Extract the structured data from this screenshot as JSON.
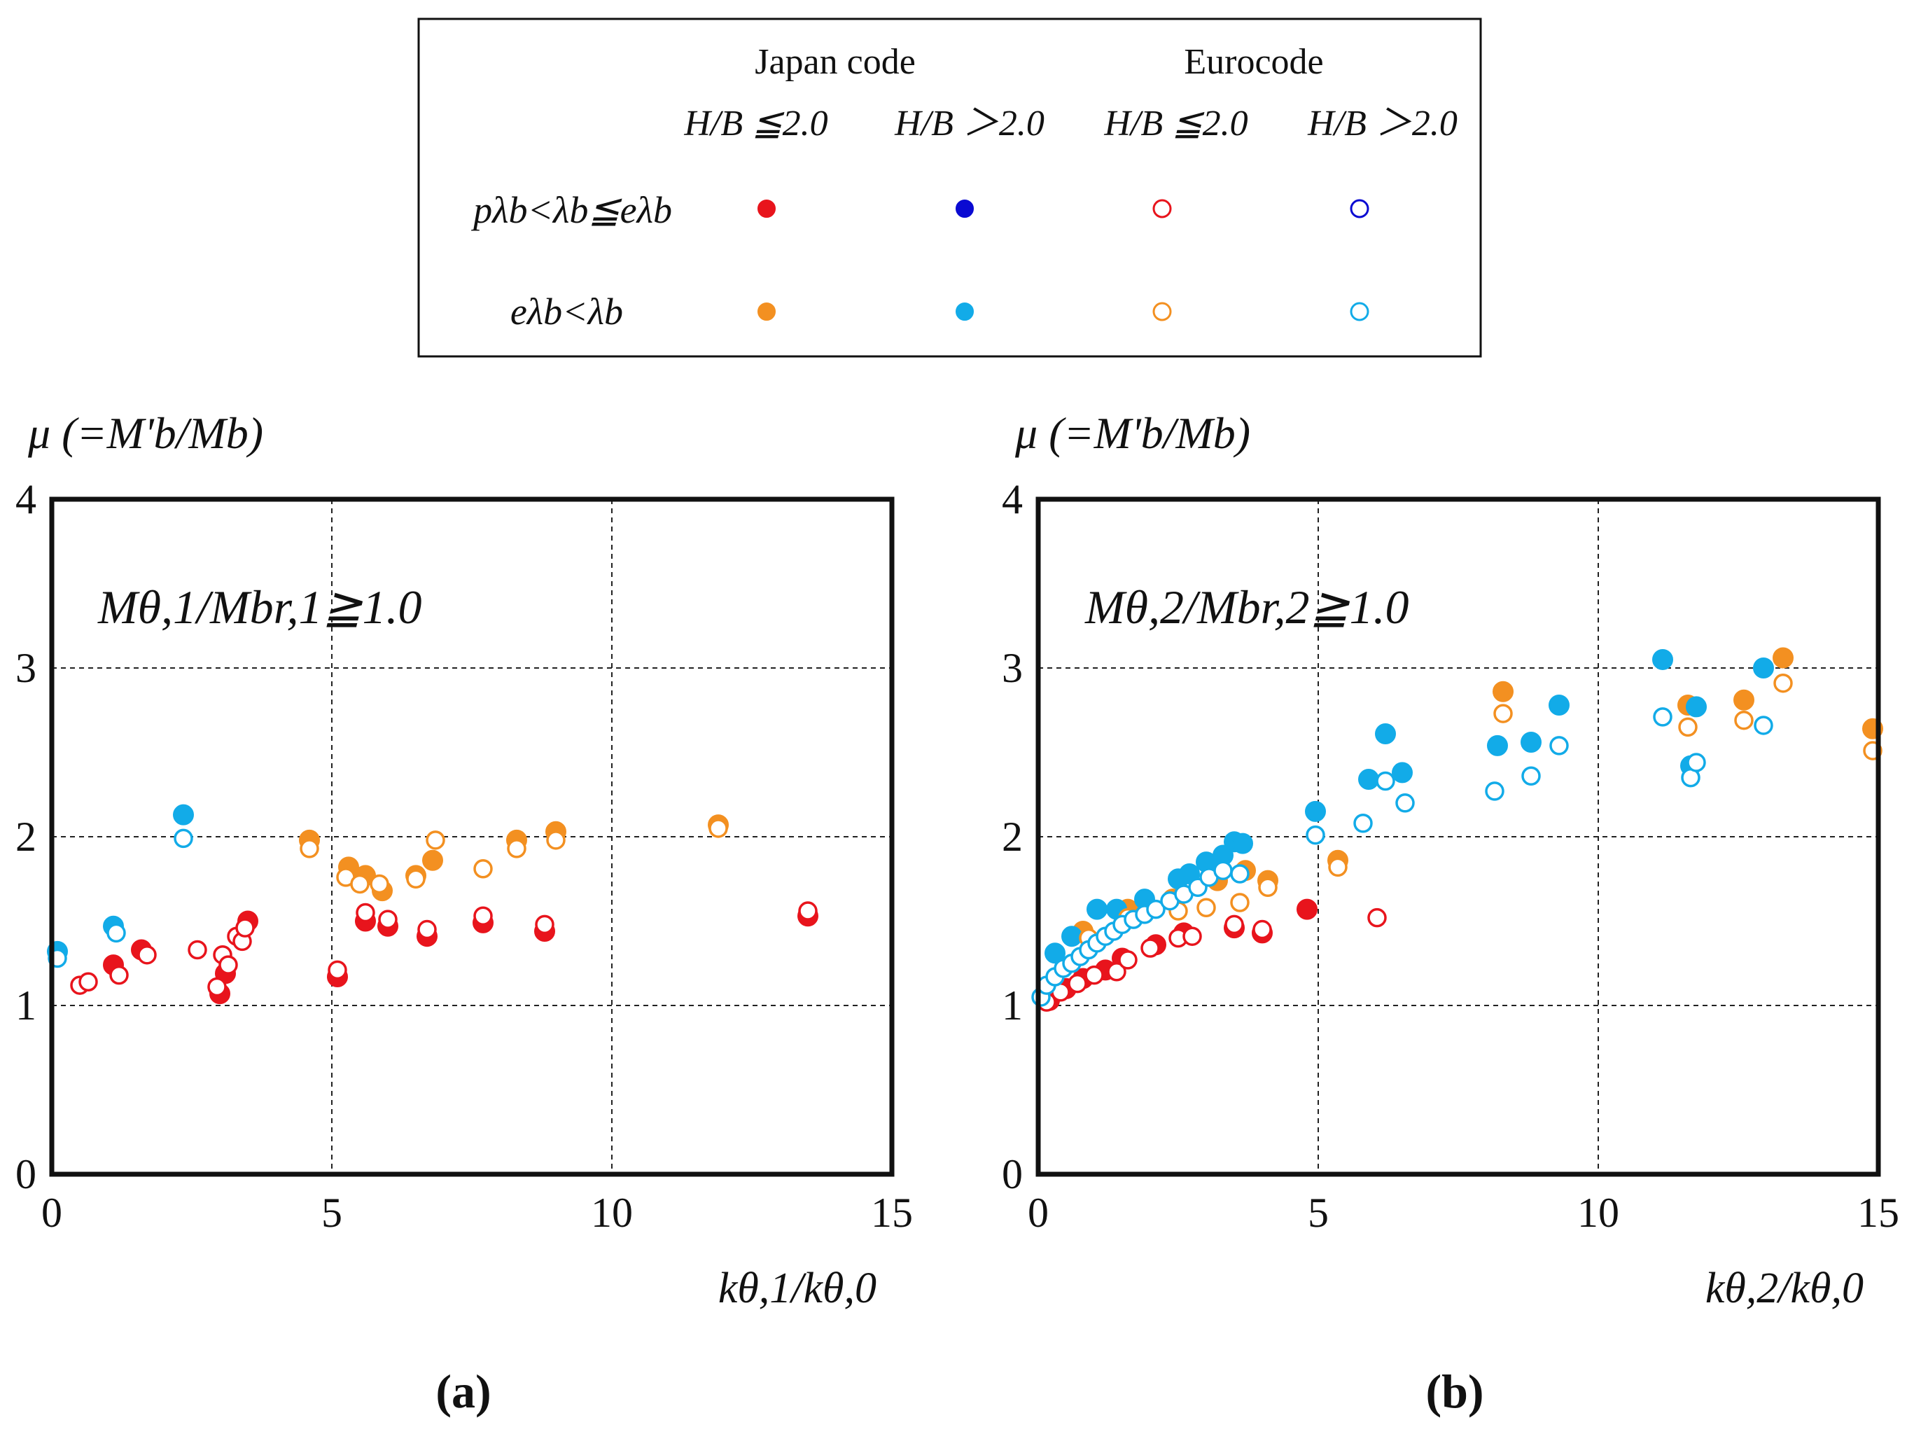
{
  "legend": {
    "groups": [
      {
        "name": "Japan code",
        "cols": [
          "H/B ≦2.0",
          "H/B ＞2.0"
        ]
      },
      {
        "name": "Eurocode",
        "cols": [
          "H/B ≦2.0",
          "H/B ＞2.0"
        ]
      }
    ],
    "rows": [
      {
        "label": "pλb<λb≦eλb",
        "colors": [
          "#e8141c",
          "#0a0ad2",
          "#e8141c",
          "#0a0ad2"
        ]
      },
      {
        "label": "eλb<λb",
        "colors": [
          "#f39021",
          "#12abe8",
          "#f39021",
          "#12abe8"
        ]
      }
    ]
  },
  "colors": {
    "red": "#e8141c",
    "blue": "#0a0ad2",
    "orange": "#f39021",
    "cyan": "#12abe8"
  },
  "chart_data": [
    {
      "type": "scatter",
      "panel_label": "(a)",
      "ylabel": "μ (=M'b/Mb)",
      "xlabel": "kθ,1/kθ,0",
      "annotation": "Mθ,1/Mbr,1≧1.0",
      "xlim": [
        0,
        15
      ],
      "ylim": [
        0,
        4
      ],
      "xticks": [
        "0",
        "5",
        "10",
        "15"
      ],
      "yticks": [
        "0",
        "1",
        "2",
        "3",
        "4"
      ],
      "grid": true,
      "series": [
        {
          "name": "Japan code, pλb<λb≦eλb",
          "color": "red",
          "filled": true,
          "x": [
            1.1,
            1.6,
            3.0,
            3.1,
            3.5,
            5.1,
            5.6,
            6.0,
            6.7,
            7.7,
            8.8,
            13.5
          ],
          "y": [
            1.24,
            1.33,
            1.07,
            1.19,
            1.5,
            1.17,
            1.5,
            1.47,
            1.41,
            1.49,
            1.44,
            1.53
          ]
        },
        {
          "name": "Eurocode, pλb<λb≦eλb",
          "color": "red",
          "filled": false,
          "x": [
            0.5,
            0.65,
            1.2,
            1.7,
            2.6,
            2.95,
            3.05,
            3.15,
            3.3,
            3.4,
            3.45,
            5.1,
            5.6,
            6.0,
            6.7,
            7.7,
            8.8,
            13.5
          ],
          "y": [
            1.12,
            1.14,
            1.18,
            1.3,
            1.33,
            1.11,
            1.3,
            1.24,
            1.41,
            1.38,
            1.46,
            1.21,
            1.55,
            1.51,
            1.45,
            1.53,
            1.48,
            1.56
          ]
        },
        {
          "name": "Japan code, eλb<λb",
          "color": "orange",
          "filled": true,
          "x": [
            4.6,
            5.3,
            5.6,
            5.9,
            6.5,
            6.8,
            8.3,
            9.0,
            11.9
          ],
          "y": [
            1.98,
            1.82,
            1.77,
            1.68,
            1.77,
            1.86,
            1.98,
            2.03,
            2.07
          ]
        },
        {
          "name": "Eurocode, eλb<λb",
          "color": "orange",
          "filled": false,
          "x": [
            4.6,
            5.25,
            5.5,
            5.85,
            6.5,
            6.85,
            7.7,
            8.3,
            9.0,
            11.9
          ],
          "y": [
            1.93,
            1.76,
            1.72,
            1.72,
            1.75,
            1.98,
            1.81,
            1.93,
            1.98,
            2.05
          ]
        },
        {
          "name": "Japan code, eλb<λb, H/B>2.0",
          "color": "cyan",
          "filled": true,
          "x": [
            0.1,
            1.1,
            2.35
          ],
          "y": [
            1.32,
            1.47,
            2.13
          ]
        },
        {
          "name": "Eurocode, eλb<λb, H/B>2.0",
          "color": "cyan",
          "filled": false,
          "x": [
            0.1,
            1.15,
            2.35
          ],
          "y": [
            1.28,
            1.43,
            1.99
          ]
        }
      ]
    },
    {
      "type": "scatter",
      "panel_label": "(b)",
      "ylabel": "μ (=M'b/Mb)",
      "xlabel": "kθ,2/kθ,0",
      "annotation": "Mθ,2/Mbr,2≧1.0",
      "xlim": [
        0,
        15
      ],
      "ylim": [
        0,
        4
      ],
      "xticks": [
        "0",
        "5",
        "10",
        "15"
      ],
      "yticks": [
        "0",
        "1",
        "2",
        "3",
        "4"
      ],
      "grid": true,
      "series": [
        {
          "name": "Japan code, pλb<λb≦eλb",
          "color": "red",
          "filled": true,
          "x": [
            0.2,
            0.5,
            0.8,
            1.2,
            1.5,
            2.1,
            2.6,
            3.5,
            4.0,
            4.8
          ],
          "y": [
            1.03,
            1.1,
            1.16,
            1.21,
            1.28,
            1.36,
            1.43,
            1.46,
            1.43,
            1.57
          ]
        },
        {
          "name": "Eurocode, pλb<λb≦eλb",
          "color": "red",
          "filled": false,
          "x": [
            0.15,
            0.4,
            0.7,
            1.0,
            1.4,
            1.6,
            2.0,
            2.5,
            2.75,
            3.5,
            4.0,
            6.05
          ],
          "y": [
            1.02,
            1.08,
            1.13,
            1.18,
            1.2,
            1.27,
            1.34,
            1.4,
            1.41,
            1.48,
            1.45,
            1.52
          ]
        },
        {
          "name": "Japan code, eλb<λb",
          "color": "orange",
          "filled": true,
          "x": [
            0.8,
            1.6,
            2.4,
            3.2,
            3.7,
            4.1,
            5.35,
            8.3,
            11.6,
            12.6,
            13.3,
            14.9
          ],
          "y": [
            1.44,
            1.57,
            1.63,
            1.74,
            1.8,
            1.74,
            1.86,
            2.86,
            2.78,
            2.81,
            3.06,
            2.64
          ]
        },
        {
          "name": "Eurocode, eλb<λb",
          "color": "orange",
          "filled": false,
          "x": [
            0.9,
            1.6,
            2.5,
            3.0,
            3.6,
            4.1,
            5.35,
            8.3,
            11.6,
            12.6,
            13.3,
            14.9
          ],
          "y": [
            1.4,
            1.52,
            1.56,
            1.58,
            1.61,
            1.7,
            1.82,
            2.73,
            2.65,
            2.69,
            2.91,
            2.51
          ]
        },
        {
          "name": "Japan code, eλb<λb, H/B>2.0",
          "color": "cyan",
          "filled": true,
          "x": [
            0.3,
            0.6,
            1.05,
            1.4,
            1.9,
            2.5,
            2.7,
            3.0,
            3.3,
            3.5,
            3.65,
            4.95,
            5.9,
            6.2,
            6.5,
            8.2,
            8.8,
            9.3,
            11.15,
            11.65,
            11.75,
            12.95
          ],
          "y": [
            1.31,
            1.41,
            1.57,
            1.57,
            1.63,
            1.75,
            1.78,
            1.85,
            1.89,
            1.97,
            1.96,
            2.15,
            2.34,
            2.61,
            2.38,
            2.54,
            2.56,
            2.78,
            3.05,
            2.42,
            2.77,
            3.0
          ]
        },
        {
          "name": "Eurocode, eλb<λb, H/B>2.0",
          "color": "cyan",
          "filled": false,
          "x": [
            0.05,
            0.15,
            0.3,
            0.45,
            0.6,
            0.75,
            0.9,
            1.05,
            1.2,
            1.35,
            1.5,
            1.7,
            1.9,
            2.1,
            2.35,
            2.6,
            2.85,
            3.05,
            3.3,
            3.6,
            4.95,
            5.8,
            6.2,
            6.55,
            8.15,
            8.8,
            9.3,
            11.15,
            11.65,
            11.75,
            12.95
          ],
          "y": [
            1.05,
            1.12,
            1.17,
            1.22,
            1.25,
            1.29,
            1.33,
            1.37,
            1.41,
            1.44,
            1.48,
            1.51,
            1.54,
            1.57,
            1.62,
            1.66,
            1.7,
            1.76,
            1.8,
            1.78,
            2.01,
            2.08,
            2.33,
            2.2,
            2.27,
            2.36,
            2.54,
            2.71,
            2.35,
            2.44,
            2.66
          ]
        }
      ]
    }
  ]
}
